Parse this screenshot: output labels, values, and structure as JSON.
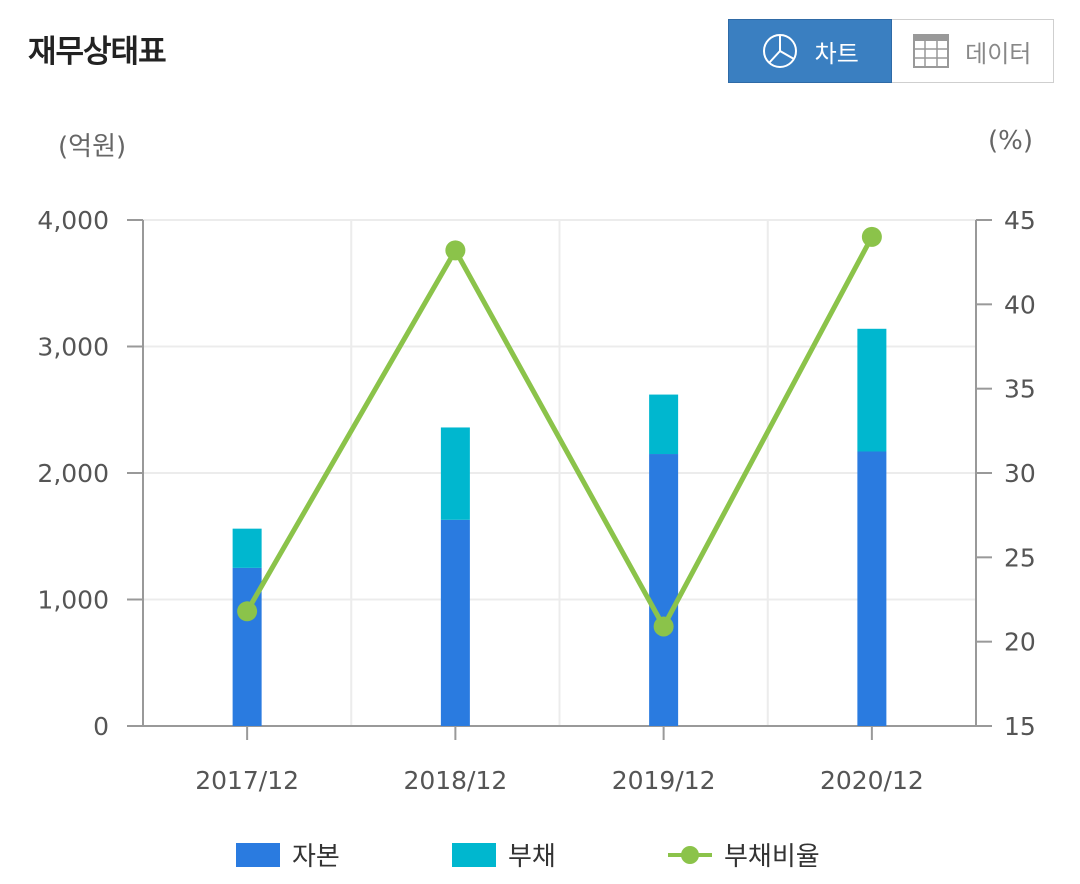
{
  "header": {
    "title": "재무상태표",
    "toggle": {
      "chart_label": "차트",
      "data_label": "데이터",
      "active": "chart"
    }
  },
  "units": {
    "left": "(억원)",
    "right": "(%)"
  },
  "colors": {
    "equity": "#2a7be0",
    "debt": "#00b7cf",
    "ratio": "#8bc34a",
    "active_button": "#3a7fc1"
  },
  "chart_data": {
    "type": "bar",
    "stacked": true,
    "categories": [
      "2017/12",
      "2018/12",
      "2019/12",
      "2020/12"
    ],
    "series": [
      {
        "name": "자본",
        "type": "bar",
        "axis": "left",
        "values": [
          1250,
          1630,
          2150,
          2170
        ]
      },
      {
        "name": "부채",
        "type": "bar",
        "axis": "left",
        "values": [
          310,
          730,
          470,
          970
        ]
      },
      {
        "name": "부채비율",
        "type": "line",
        "axis": "right",
        "values": [
          21.8,
          43.2,
          20.9,
          44.0
        ]
      }
    ],
    "y_left": {
      "min": 0,
      "max": 4000,
      "ticks": [
        0,
        1000,
        2000,
        3000,
        4000
      ],
      "tick_labels": [
        "0",
        "1,000",
        "2,000",
        "3,000",
        "4,000"
      ]
    },
    "y_right": {
      "min": 15,
      "max": 45,
      "ticks": [
        15,
        20,
        25,
        30,
        35,
        40,
        45
      ],
      "tick_labels": [
        "15",
        "20",
        "25",
        "30",
        "35",
        "40",
        "45"
      ]
    },
    "grid": true,
    "legend_position": "bottom"
  }
}
